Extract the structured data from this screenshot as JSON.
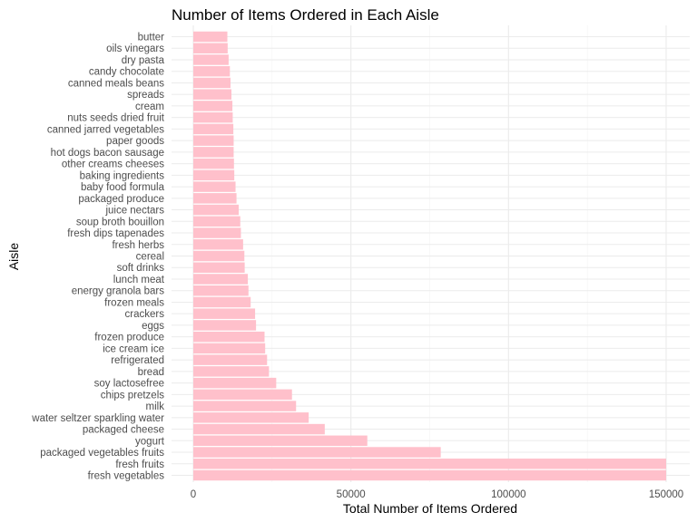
{
  "chart_data": {
    "type": "bar",
    "orientation": "horizontal",
    "title": "Number of Items Ordered in Each Aisle",
    "xlabel": "Total Number of Items Ordered",
    "ylabel": "Aisle",
    "xlim": [
      0,
      150000
    ],
    "xticks": [
      "0",
      "50000",
      "100000",
      "150000"
    ],
    "bar_color": "#FFC0CB",
    "grid": true,
    "categories": [
      "fresh vegetables",
      "fresh fruits",
      "packaged vegetables fruits",
      "yogurt",
      "packaged cheese",
      "water seltzer sparkling water",
      "milk",
      "chips pretzels",
      "soy lactosefree",
      "bread",
      "refrigerated",
      "ice cream ice",
      "frozen produce",
      "eggs",
      "crackers",
      "frozen meals",
      "energy granola bars",
      "lunch meat",
      "soft drinks",
      "cereal",
      "fresh herbs",
      "fresh dips tapenades",
      "soup broth bouillon",
      "juice nectars",
      "packaged produce",
      "baby food formula",
      "baking ingredients",
      "other creams cheeses",
      "hot dogs bacon sausage",
      "paper goods",
      "canned jarred vegetables",
      "nuts seeds dried fruit",
      "cream",
      "spreads",
      "canned meals beans",
      "candy chocolate",
      "dry pasta",
      "oils vinegars",
      "butter"
    ],
    "values": [
      150000,
      150000,
      78500,
      55200,
      41700,
      36600,
      32600,
      31300,
      26300,
      24000,
      23400,
      22800,
      22600,
      19900,
      19600,
      18200,
      17500,
      17300,
      16300,
      16200,
      15800,
      15100,
      14900,
      14400,
      13700,
      13400,
      13000,
      12900,
      12800,
      12800,
      12700,
      12500,
      12400,
      12100,
      11800,
      11600,
      11200,
      10900,
      10800
    ]
  }
}
